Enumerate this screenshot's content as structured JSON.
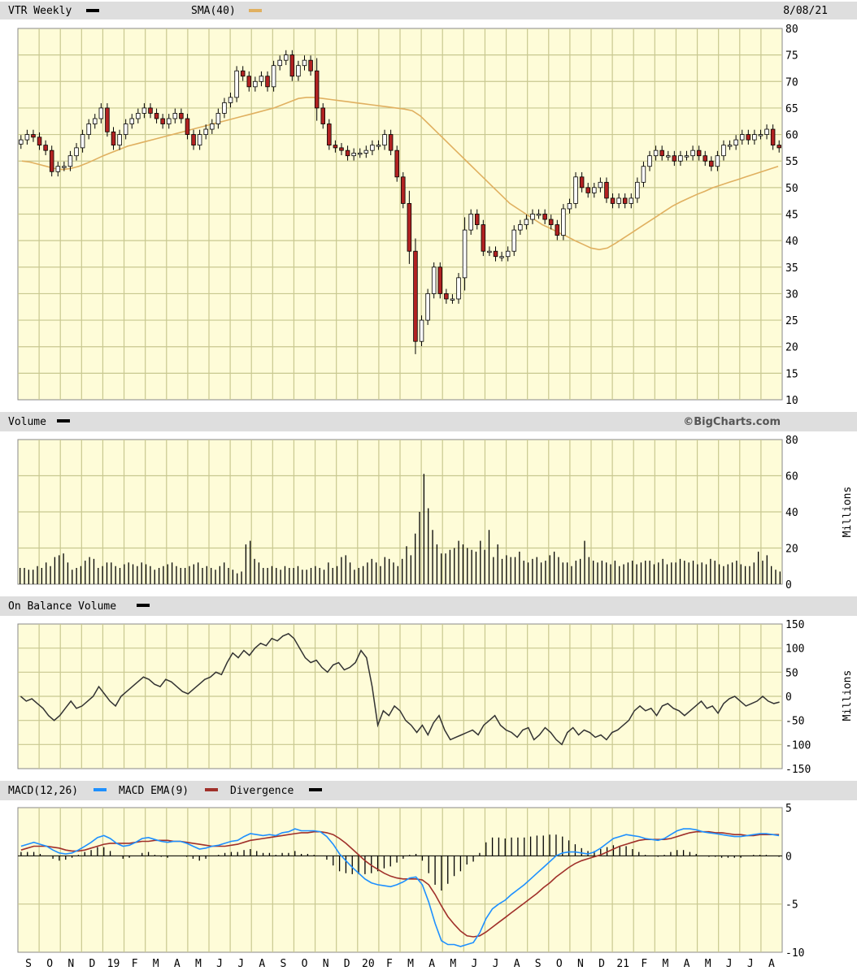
{
  "colors": {
    "plot_bg": "#fefcd8",
    "grid": "#c8c890",
    "header_bg": "#dedede",
    "up_body": "#ffffff",
    "down_body": "#b22222",
    "wick": "#000000",
    "sma": "#e0b060",
    "macd": "#1e90ff",
    "macd_ema": "#a0302a",
    "volume_bar": "#000000",
    "obv_line": "#333333"
  },
  "price_panel": {
    "symbol_label": "VTR Weekly",
    "sma_label": "SMA(40)",
    "date_label": "8/08/21"
  },
  "volume_panel": {
    "label": "Volume",
    "brand": "©BigCharts.com",
    "unit": "Millions"
  },
  "obv_panel": {
    "label": "On Balance Volume",
    "unit": "Millions"
  },
  "macd_panel": {
    "label_macd": "MACD(12,26)",
    "label_ema": "MACD EMA(9)",
    "label_div": "Divergence"
  },
  "chart_data": [
    {
      "type": "candlestick",
      "name": "VTR Weekly",
      "ylim": [
        10,
        80
      ],
      "yticks": [
        "80",
        "75",
        "70",
        "65",
        "60",
        "55",
        "50",
        "45",
        "40",
        "35",
        "30",
        "25",
        "20",
        "15",
        "10"
      ],
      "x_labels": [
        "S",
        "O",
        "N",
        "D",
        "19",
        "F",
        "M",
        "A",
        "M",
        "J",
        "J",
        "A",
        "S",
        "O",
        "N",
        "D",
        "20",
        "F",
        "M",
        "A",
        "M",
        "J",
        "J",
        "A",
        "S",
        "O",
        "N",
        "D",
        "21",
        "F",
        "M",
        "A",
        "M",
        "J",
        "J",
        "A"
      ],
      "closes": [
        59,
        60,
        59.5,
        58,
        57,
        53,
        54,
        54,
        56,
        57.5,
        60,
        62,
        63,
        65,
        60.5,
        58,
        60,
        62,
        63,
        64,
        65,
        64,
        63,
        62,
        63,
        64,
        63,
        60,
        58,
        60,
        61,
        62,
        64,
        66,
        67,
        72,
        71,
        69,
        70,
        71,
        69,
        73,
        74,
        75,
        71,
        73,
        74,
        72,
        65,
        62,
        58,
        57.5,
        57,
        56,
        56.5,
        56.5,
        57,
        58,
        58,
        60,
        57,
        52,
        47,
        38,
        21,
        25,
        30,
        35,
        30,
        29,
        29,
        33,
        42,
        45,
        43,
        38,
        38,
        37,
        37,
        38,
        42,
        43,
        44,
        45,
        45,
        44,
        43,
        41,
        46,
        47,
        52,
        50,
        49,
        50,
        51,
        48,
        47,
        48,
        47,
        48,
        51,
        54,
        56,
        57,
        56,
        56,
        55,
        56,
        56,
        57,
        56,
        55,
        54,
        56,
        58,
        58,
        59,
        60,
        59,
        60,
        60,
        61,
        58,
        57.5
      ],
      "sma40": [
        55,
        54.8,
        54.4,
        54,
        53.6,
        53.4,
        53.6,
        54,
        54.6,
        55.3,
        56,
        56.6,
        57.2,
        57.8,
        58.2,
        58.6,
        59,
        59.4,
        59.8,
        60.2,
        60.6,
        61,
        61.4,
        61.8,
        62.2,
        62.6,
        63,
        63.4,
        63.8,
        64.2,
        64.6,
        65,
        65.6,
        66.2,
        66.8,
        67,
        67,
        66.8,
        66.6,
        66.4,
        66.2,
        66,
        65.8,
        65.6,
        65.4,
        65.2,
        65,
        64.8,
        64.5,
        63.5,
        62,
        60.5,
        59,
        57.5,
        56,
        54.5,
        53,
        51.5,
        50,
        48.5,
        47,
        46,
        45,
        44,
        43,
        42.3,
        41.5,
        40.8,
        40,
        39.3,
        38.6,
        38.3,
        38.6,
        39.5,
        40.5,
        41.5,
        42.5,
        43.5,
        44.5,
        45.5,
        46.5,
        47.3,
        48,
        48.7,
        49.3,
        50,
        50.5,
        51,
        51.5,
        52,
        52.5,
        53,
        53.5,
        54
      ],
      "sma_start_index": 0
    },
    {
      "type": "bar",
      "name": "Volume",
      "unit": "Millions",
      "ylim": [
        0,
        80
      ],
      "yticks": [
        "80",
        "60",
        "40",
        "20",
        "0"
      ],
      "values": [
        9,
        9,
        8,
        8,
        10,
        9,
        12,
        10,
        15,
        16,
        17,
        12,
        8,
        9,
        10,
        13,
        15,
        14,
        9,
        10,
        12,
        12,
        10,
        9,
        11,
        12,
        11,
        10,
        12,
        11,
        10,
        8,
        9,
        10,
        11,
        12,
        10,
        9,
        9,
        10,
        11,
        12,
        9,
        10,
        9,
        8,
        10,
        12,
        9,
        8,
        6,
        7,
        22,
        24,
        14,
        12,
        9,
        9,
        10,
        9,
        8,
        10,
        9,
        9,
        10,
        8,
        8,
        9,
        10,
        9,
        8,
        12,
        9,
        10,
        15,
        16,
        12,
        8,
        9,
        10,
        12,
        14,
        12,
        10,
        15,
        14,
        12,
        10,
        14,
        21,
        16,
        28,
        40,
        61,
        42,
        30,
        22,
        17,
        17,
        19,
        20,
        24,
        22,
        20,
        19,
        18,
        24,
        19,
        30,
        15,
        22,
        14,
        16,
        15,
        15,
        18,
        13,
        12,
        14,
        15,
        12,
        13,
        16,
        18,
        15,
        12,
        12,
        10,
        13,
        14,
        24,
        15,
        13,
        12,
        13,
        12,
        11,
        13,
        10,
        11,
        12,
        13,
        11,
        12,
        13,
        13,
        11,
        12,
        14,
        11,
        12,
        12,
        14,
        13,
        12,
        13,
        11,
        12,
        11,
        14,
        13,
        11,
        10,
        11,
        12,
        13,
        11,
        10,
        10,
        12,
        18,
        13,
        16,
        10,
        8,
        7
      ]
    },
    {
      "type": "line",
      "name": "On Balance Volume",
      "unit": "Millions",
      "ylim": [
        -150,
        150
      ],
      "yticks": [
        "150",
        "100",
        "50",
        "0",
        "-50",
        "-100",
        "-150"
      ],
      "values": [
        0,
        -10,
        -5,
        -15,
        -25,
        -40,
        -50,
        -40,
        -25,
        -10,
        -25,
        -20,
        -10,
        0,
        20,
        5,
        -10,
        -20,
        0,
        10,
        20,
        30,
        40,
        35,
        25,
        20,
        35,
        30,
        20,
        10,
        5,
        15,
        25,
        35,
        40,
        50,
        45,
        70,
        90,
        80,
        95,
        85,
        100,
        110,
        105,
        120,
        115,
        125,
        130,
        120,
        100,
        80,
        70,
        75,
        60,
        50,
        65,
        70,
        55,
        60,
        70,
        95,
        80,
        20,
        -60,
        -30,
        -40,
        -20,
        -30,
        -50,
        -60,
        -75,
        -60,
        -80,
        -55,
        -40,
        -70,
        -90,
        -85,
        -80,
        -75,
        -70,
        -80,
        -60,
        -50,
        -40,
        -60,
        -70,
        -75,
        -85,
        -70,
        -65,
        -90,
        -80,
        -65,
        -75,
        -90,
        -100,
        -75,
        -65,
        -80,
        -70,
        -75,
        -85,
        -80,
        -90,
        -75,
        -70,
        -60,
        -50,
        -30,
        -20,
        -30,
        -25,
        -40,
        -20,
        -15,
        -25,
        -30,
        -40,
        -30,
        -20,
        -10,
        -25,
        -20,
        -35,
        -15,
        -5,
        0,
        -10,
        -20,
        -15,
        -10,
        0,
        -10,
        -15,
        -12
      ]
    },
    {
      "type": "line",
      "name": "MACD",
      "ylim": [
        -10,
        5
      ],
      "yticks": [
        "5",
        "0",
        "-5",
        "-10"
      ],
      "series": [
        {
          "name": "MACD(12,26)",
          "values": [
            1,
            1.2,
            1.4,
            1.2,
            1,
            0.6,
            0.3,
            0.2,
            0.3,
            0.6,
            1,
            1.4,
            1.9,
            2.1,
            1.8,
            1.3,
            1.0,
            1.1,
            1.4,
            1.8,
            1.9,
            1.7,
            1.5,
            1.4,
            1.5,
            1.5,
            1.3,
            1.0,
            0.7,
            0.8,
            1.0,
            1.1,
            1.3,
            1.5,
            1.6,
            2.0,
            2.3,
            2.2,
            2.1,
            2.2,
            2.1,
            2.4,
            2.5,
            2.8,
            2.6,
            2.6,
            2.6,
            2.5,
            2.0,
            1.2,
            0.2,
            -0.5,
            -1.2,
            -1.8,
            -2.4,
            -2.8,
            -3.0,
            -3.1,
            -3.2,
            -3.0,
            -2.7,
            -2.3,
            -2.2,
            -3.0,
            -4.8,
            -7.0,
            -8.8,
            -9.2,
            -9.2,
            -9.4,
            -9.2,
            -9.0,
            -8.0,
            -6.5,
            -5.5,
            -5.0,
            -4.6,
            -4.0,
            -3.5,
            -3.0,
            -2.4,
            -1.8,
            -1.2,
            -0.6,
            0,
            0.3,
            0.4,
            0.4,
            0.3,
            0.2,
            0.4,
            0.8,
            1.3,
            1.8,
            2.0,
            2.2,
            2.1,
            2.0,
            1.8,
            1.7,
            1.6,
            1.8,
            2.2,
            2.6,
            2.8,
            2.8,
            2.7,
            2.5,
            2.4,
            2.3,
            2.2,
            2.1,
            2.0,
            2.0,
            2.1,
            2.2,
            2.3,
            2.3,
            2.2,
            2.1
          ]
        },
        {
          "name": "MACD EMA(9)",
          "values": [
            0.6,
            0.8,
            1.0,
            1.0,
            1.0,
            0.9,
            0.8,
            0.6,
            0.5,
            0.5,
            0.6,
            0.8,
            1.0,
            1.2,
            1.3,
            1.3,
            1.3,
            1.3,
            1.4,
            1.5,
            1.5,
            1.6,
            1.6,
            1.6,
            1.5,
            1.5,
            1.4,
            1.3,
            1.2,
            1.1,
            1.0,
            1.0,
            1.0,
            1.1,
            1.2,
            1.4,
            1.6,
            1.7,
            1.8,
            1.9,
            2.0,
            2.1,
            2.2,
            2.3,
            2.4,
            2.4,
            2.5,
            2.5,
            2.4,
            2.2,
            1.8,
            1.3,
            0.7,
            0.1,
            -0.5,
            -1.0,
            -1.4,
            -1.8,
            -2.1,
            -2.3,
            -2.4,
            -2.4,
            -2.4,
            -2.5,
            -3.0,
            -4.0,
            -5.2,
            -6.3,
            -7.1,
            -7.8,
            -8.3,
            -8.4,
            -8.3,
            -7.9,
            -7.4,
            -6.9,
            -6.4,
            -5.9,
            -5.4,
            -4.9,
            -4.4,
            -3.9,
            -3.3,
            -2.8,
            -2.2,
            -1.7,
            -1.2,
            -0.8,
            -0.5,
            -0.3,
            -0.1,
            0.1,
            0.4,
            0.7,
            1.0,
            1.2,
            1.4,
            1.6,
            1.7,
            1.7,
            1.7,
            1.7,
            1.8,
            2.0,
            2.2,
            2.4,
            2.5,
            2.5,
            2.5,
            2.4,
            2.4,
            2.3,
            2.2,
            2.2,
            2.1,
            2.1,
            2.2,
            2.2,
            2.2,
            2.2
          ]
        },
        {
          "name": "Divergence",
          "values": [
            0.4,
            0.4,
            0.4,
            0.2,
            0,
            -0.3,
            -0.5,
            -0.4,
            -0.2,
            0.1,
            0.4,
            0.6,
            0.9,
            0.9,
            0.5,
            0,
            -0.3,
            -0.2,
            0,
            0.3,
            0.4,
            0.1,
            -0.1,
            -0.2,
            0,
            0,
            -0.1,
            -0.3,
            -0.5,
            -0.3,
            0,
            0.1,
            0.3,
            0.4,
            0.4,
            0.6,
            0.7,
            0.5,
            0.3,
            0.3,
            0.1,
            0.3,
            0.3,
            0.5,
            0.2,
            0.2,
            0.1,
            0,
            -0.4,
            -1.0,
            -1.6,
            -1.8,
            -1.9,
            -1.9,
            -1.9,
            -1.8,
            -1.6,
            -1.3,
            -1.1,
            -0.7,
            -0.3,
            0.1,
            0.2,
            -0.5,
            -1.8,
            -3.0,
            -3.6,
            -2.9,
            -2.1,
            -1.6,
            -0.9,
            -0.6,
            0.3,
            1.4,
            1.9,
            1.9,
            1.8,
            1.9,
            1.9,
            1.9,
            2.0,
            2.1,
            2.1,
            2.2,
            2.2,
            2.0,
            1.6,
            1.2,
            0.8,
            0.5,
            0.5,
            0.7,
            0.9,
            1.1,
            1.0,
            1.0,
            0.7,
            0.4,
            0.1,
            0,
            -0.1,
            0.1,
            0.4,
            0.6,
            0.6,
            0.4,
            0.2,
            0,
            -0.1,
            -0.1,
            -0.2,
            -0.2,
            -0.2,
            -0.2,
            0,
            0.1,
            0.1,
            0.1,
            0,
            -0.1
          ]
        }
      ]
    }
  ]
}
